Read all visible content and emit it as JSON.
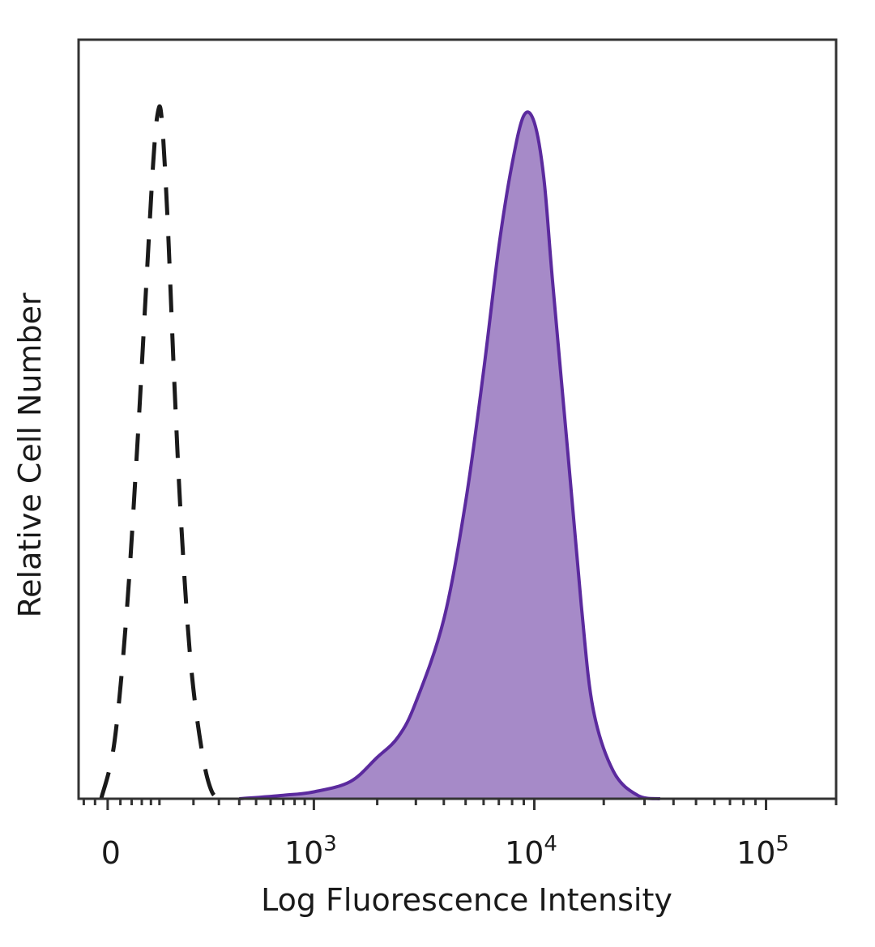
{
  "chart_data": {
    "type": "area",
    "title": "",
    "xlabel": "Log Fluorescence Intensity",
    "ylabel": "Relative Cell Number",
    "x_scale": "biexponential",
    "xlim": [
      -50,
      200000
    ],
    "ylim": [
      0,
      1.1
    ],
    "grid": false,
    "legend": "none",
    "x_ticks": [
      {
        "value": 0,
        "base": "0",
        "exp": ""
      },
      {
        "value": 1000,
        "base": "10",
        "exp": "3"
      },
      {
        "value": 10000,
        "base": "10",
        "exp": "4"
      },
      {
        "value": 100000,
        "base": "10",
        "exp": "5"
      }
    ],
    "series": [
      {
        "style": "dashed",
        "color": "#1a1a1a",
        "fill": "none",
        "x": [
          -10,
          10,
          30,
          50,
          70,
          85,
          95,
          105,
          120,
          140,
          160,
          190,
          230,
          270,
          320
        ],
        "y": [
          0.0,
          0.08,
          0.26,
          0.5,
          0.75,
          0.92,
          0.99,
          0.99,
          0.85,
          0.6,
          0.4,
          0.2,
          0.07,
          0.01,
          0.0
        ]
      },
      {
        "style": "solid",
        "color": "#5b2a9e",
        "fill": "#a68ac8",
        "x": [
          400,
          700,
          1000,
          1500,
          2000,
          2500,
          3000,
          4000,
          5000,
          6000,
          7000,
          8000,
          9000,
          10000,
          11000,
          12000,
          14000,
          16000,
          18000,
          22000,
          28000,
          35000
        ],
        "y": [
          0.0,
          0.005,
          0.01,
          0.025,
          0.06,
          0.09,
          0.14,
          0.26,
          0.43,
          0.62,
          0.8,
          0.92,
          0.99,
          0.98,
          0.9,
          0.75,
          0.5,
          0.28,
          0.13,
          0.04,
          0.005,
          0.0
        ]
      }
    ]
  }
}
